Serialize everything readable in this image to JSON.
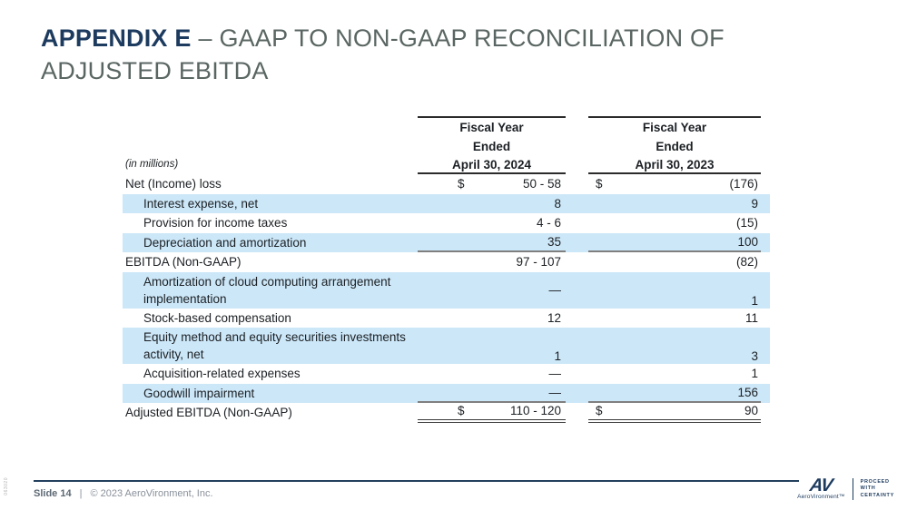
{
  "title": {
    "prefix": "APPENDIX E",
    "rest_line1": "– GAAP TO NON-GAAP RECONCILIATION OF",
    "line2": "ADJUSTED EBITDA"
  },
  "table": {
    "units_note": "(in millions)",
    "currency_symbol": "$",
    "columns": [
      {
        "line1": "Fiscal Year",
        "line2": "Ended",
        "line3": "April 30, 2024"
      },
      {
        "line1": "Fiscal Year",
        "line2": "Ended",
        "line3": "April 30, 2023"
      }
    ],
    "rows": [
      {
        "label": "Net (Income) loss",
        "indent": false,
        "highlight": false,
        "dollar": true,
        "v2024": "50 - 58",
        "v2023": "(176)",
        "rule": "none"
      },
      {
        "label": "Interest expense, net",
        "indent": true,
        "highlight": true,
        "v2024": "8",
        "v2023": "9",
        "rule": "none"
      },
      {
        "label": "Provision for income taxes",
        "indent": true,
        "highlight": false,
        "v2024": "4 - 6",
        "v2023": "(15)",
        "rule": "none"
      },
      {
        "label": "Depreciation and amortization",
        "indent": true,
        "highlight": true,
        "v2024": "35",
        "v2023": "100",
        "rule": "single"
      },
      {
        "label": "EBITDA (Non-GAAP)",
        "indent": false,
        "highlight": false,
        "v2024": "97 - 107",
        "v2023": "(82)",
        "rule": "none"
      },
      {
        "label": "Amortization of cloud computing arrangement",
        "label2": "implementation",
        "indent": true,
        "highlight": true,
        "v2024": "—",
        "v2023": "1",
        "valign2": "bottom",
        "rule": "none"
      },
      {
        "label": "Stock-based compensation",
        "indent": true,
        "highlight": false,
        "v2024": "12",
        "v2023": "11",
        "rule": "none"
      },
      {
        "label": "Equity method and equity securities investments",
        "label2": "activity, net",
        "indent": true,
        "highlight": true,
        "v2024": "1",
        "v2023": "3",
        "valign1": "bottom",
        "valign2": "bottom",
        "rule": "none"
      },
      {
        "label": "Acquisition-related expenses",
        "indent": true,
        "highlight": false,
        "v2024": "—",
        "v2023": "1",
        "rule": "none"
      },
      {
        "label": "Goodwill impairment",
        "indent": true,
        "highlight": true,
        "v2024": "—",
        "v2023": "156",
        "rule": "single"
      },
      {
        "label": "Adjusted EBITDA (Non-GAAP)",
        "indent": false,
        "highlight": false,
        "dollar": true,
        "v2024": "110 - 120",
        "v2023": "90",
        "rule": "double"
      }
    ]
  },
  "footer": {
    "slide_label": "Slide 14",
    "separator": "|",
    "copyright": "© 2023 AeroVironment, Inc.",
    "sidebar_code": "063020",
    "logo_mark": "AV",
    "logo_wordmark": "AeroVironment™",
    "tagline": [
      "PROCEED",
      "WITH",
      "CERTAINTY"
    ]
  },
  "colors": {
    "accent_navy": "#1d3b5f",
    "title_gray": "#5a6663",
    "row_highlight": "#cce7f8",
    "rule_gray": "#7f7f7f",
    "footer_gray": "#8a919b"
  }
}
